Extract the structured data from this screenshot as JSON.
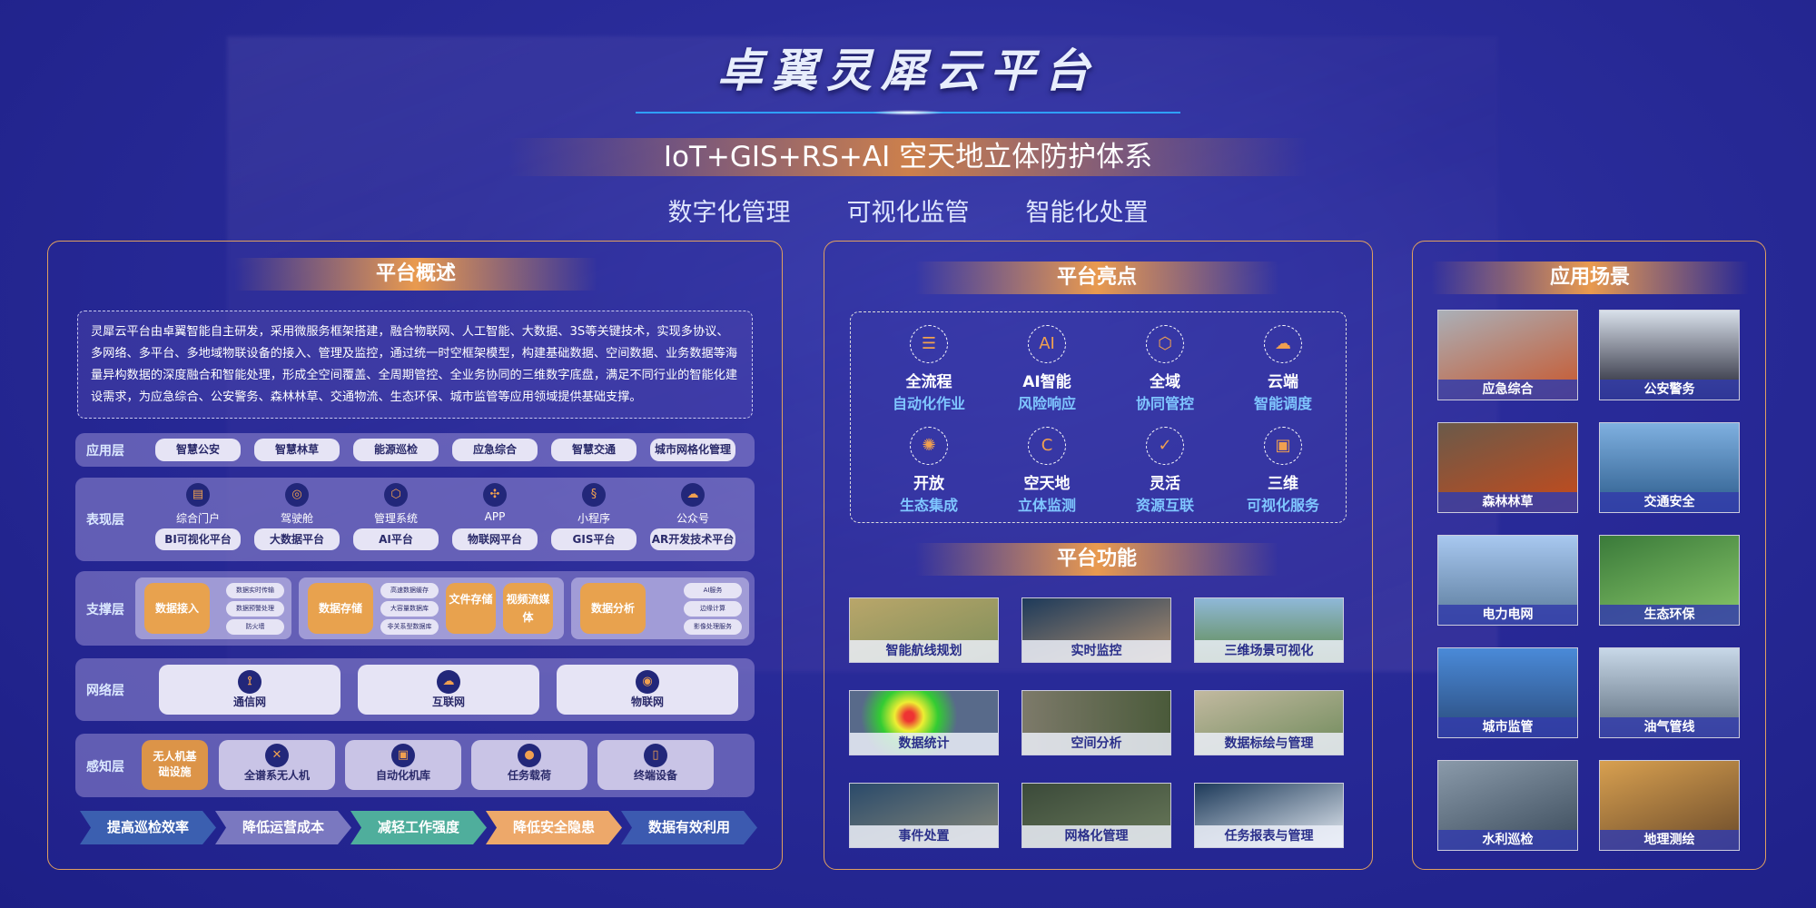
{
  "header": {
    "title": "卓翼灵犀云平台",
    "subtitle": "IoT+GIS+RS+AI 空天地立体防护体系",
    "tags": [
      "数字化管理",
      "可视化监管",
      "智能化处置"
    ]
  },
  "overview": {
    "title": "平台概述",
    "description": "灵犀云平台由卓翼智能自主研发，采用微服务框架搭建，融合物联网、人工智能、大数据、3S等关键技术，实现多协议、多网络、多平台、多地域物联设备的接入、管理及监控，通过统一时空框架模型，构建基础数据、空间数据、业务数据等海量异构数据的深度融合和智能处理，形成全空间覆盖、全周期管控、全业务协同的三维数字底盘，满足不同行业的智能化建设需求，为应急综合、公安警务、森林林草、交通物流、生态环保、城市监管等应用领域提供基础支撑。",
    "app_layer": {
      "name": "应用层",
      "items": [
        "智慧公安",
        "智慧林草",
        "能源巡检",
        "应急综合",
        "智慧交通",
        "城市网格化管理"
      ]
    },
    "presentation_layer": {
      "name": "表现层",
      "items": [
        {
          "icon": "portal-icon",
          "label": "综合门户",
          "platform": "BI可视化平台"
        },
        {
          "icon": "steering-wheel-icon",
          "label": "驾驶舱",
          "platform": "大数据平台"
        },
        {
          "icon": "hexagon-system-icon",
          "label": "管理系统",
          "platform": "AI平台"
        },
        {
          "icon": "app-grid-icon",
          "label": "APP",
          "platform": "物联网平台"
        },
        {
          "icon": "mini-program-icon",
          "label": "小程序",
          "platform": "GIS平台"
        },
        {
          "icon": "wechat-icon",
          "label": "公众号",
          "platform": "AR开发技术平台"
        }
      ]
    },
    "support_layer": {
      "name": "支撑层",
      "groups": [
        {
          "main": [
            "数据接入"
          ],
          "subs": [
            "数据实时传输",
            "数据预警处理",
            "防火墙"
          ]
        },
        {
          "main": [
            "数据存储",
            "文件存储",
            "视频流媒体"
          ],
          "subs": [
            "高速数据缓存",
            "大容量数据库",
            "非关系型数据库"
          ]
        },
        {
          "main": [
            "数据分析"
          ],
          "subs": [
            "AI服务",
            "边缘计算",
            "影像处理服务"
          ]
        }
      ]
    },
    "network_layer": {
      "name": "网络层",
      "items": [
        {
          "icon": "antenna-icon",
          "label": "通信网"
        },
        {
          "icon": "cloud-icon",
          "label": "互联网"
        },
        {
          "icon": "iot-signal-icon",
          "label": "物联网"
        }
      ]
    },
    "perception_layer": {
      "name": "感知层",
      "highlight": "无人机基础设施",
      "items": [
        {
          "icon": "drone-icon",
          "label": "全谱系无人机"
        },
        {
          "icon": "hangar-icon",
          "label": "自动化机库"
        },
        {
          "icon": "camera-payload-icon",
          "label": "任务载荷"
        },
        {
          "icon": "phone-icon",
          "label": "终端设备"
        }
      ]
    },
    "benefits": [
      {
        "label": "提高巡检效率",
        "color": "#3b5fb0"
      },
      {
        "label": "降低运营成本",
        "color": "#7a78c0"
      },
      {
        "label": "减轻工作强度",
        "color": "#4fae9c"
      },
      {
        "label": "降低安全隐患",
        "color": "#eda86a"
      },
      {
        "label": "数据有效利用",
        "color": "#3c5ab0"
      }
    ]
  },
  "highlights": {
    "title": "平台亮点",
    "items": [
      {
        "icon": "clipboard-icon",
        "a": "全流程",
        "b": "自动化作业"
      },
      {
        "icon": "ai-head-icon",
        "a": "AI智能",
        "b": "风险响应"
      },
      {
        "icon": "lock-network-icon",
        "a": "全域",
        "b": "协同管控"
      },
      {
        "icon": "cloud-link-icon",
        "a": "云端",
        "b": "智能调度"
      },
      {
        "icon": "lightbulb-network-icon",
        "a": "开放",
        "b": "生态集成"
      },
      {
        "icon": "c-circle-icon",
        "a": "空天地",
        "b": "立体监测"
      },
      {
        "icon": "shield-check-icon",
        "a": "灵活",
        "b": "资源互联"
      },
      {
        "icon": "monitor-3d-icon",
        "a": "三维",
        "b": "可视化服务"
      }
    ]
  },
  "functions": {
    "title": "平台功能",
    "items": [
      "智能航线规划",
      "实时监控",
      "三维场景可视化",
      "数据统计",
      "空间分析",
      "数据标绘与管理",
      "事件处置",
      "网格化管理",
      "任务报表与管理"
    ]
  },
  "scenarios": {
    "title": "应用场景",
    "items": [
      "应急综合",
      "公安警务",
      "森林林草",
      "交通安全",
      "电力电网",
      "生态环保",
      "城市监管",
      "油气管线",
      "水利巡检",
      "地理测绘"
    ]
  },
  "colors": {
    "accent": "#e99a4f",
    "background": "#2a2c9a",
    "highlight_text": "#7fc6ff"
  }
}
